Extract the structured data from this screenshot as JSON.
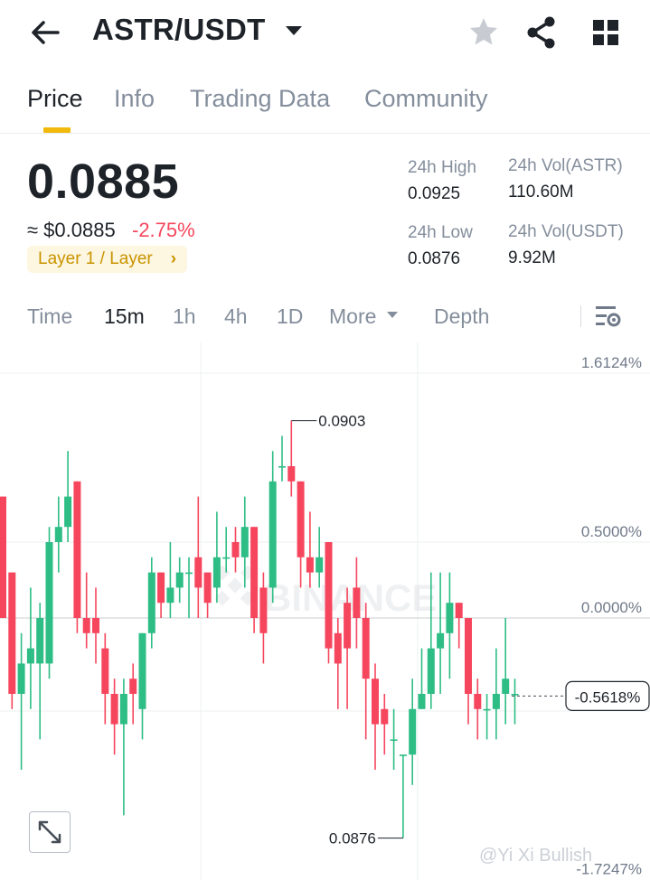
{
  "header": {
    "pair": "ASTR/USDT",
    "icons": [
      "back-arrow-icon",
      "caret-down-icon",
      "star-icon",
      "share-icon",
      "grid-icon"
    ]
  },
  "tabs": [
    {
      "label": "Price",
      "active": true
    },
    {
      "label": "Info",
      "active": false
    },
    {
      "label": "Trading Data",
      "active": false
    },
    {
      "label": "Community",
      "active": false
    }
  ],
  "price": {
    "last": "0.0885",
    "usd": "≈ $0.0885",
    "change": "-2.75%",
    "tag": "Layer 1 / Layer",
    "tag_chevron": "›"
  },
  "stats": {
    "high_label": "24h High",
    "high_value": "0.0925",
    "low_label": "24h Low",
    "low_value": "0.0876",
    "vol_base_label": "24h Vol(ASTR)",
    "vol_base_value": "110.60M",
    "vol_quote_label": "24h Vol(USDT)",
    "vol_quote_value": "9.92M"
  },
  "intervals": {
    "time": "Time",
    "m15": "15m",
    "h1": "1h",
    "h4": "4h",
    "d1": "1D",
    "more": "More",
    "depth": "Depth",
    "active": "15m"
  },
  "colors": {
    "up": "#2ebd85",
    "down": "#f6465d",
    "accent": "#f0b90b",
    "muted": "#848e9c"
  },
  "chart_data": {
    "type": "candlestick",
    "y_axis_labels": [
      "1.6124%",
      "0.5000%",
      "0.0000%",
      "-0.5618%",
      "-1.7247%"
    ],
    "y_axis_values": [
      1.6124,
      0.5,
      0.0,
      -0.5618,
      -1.7247
    ],
    "max_marker": "0.0903",
    "min_marker": "0.0876",
    "current_change_label": "-0.5618%",
    "watermark": "BINANCE",
    "candles": [
      {
        "o": 0.8,
        "c": 0.0,
        "h": 0.8,
        "l": 0.0
      },
      {
        "o": 0.3,
        "c": -0.5,
        "h": 0.3,
        "l": -0.6
      },
      {
        "o": -0.5,
        "c": -0.3,
        "h": -0.1,
        "l": -1.0
      },
      {
        "o": -0.3,
        "c": -0.2,
        "h": 0.2,
        "l": -0.6
      },
      {
        "o": -0.3,
        "c": 0.0,
        "h": 0.1,
        "l": -0.8
      },
      {
        "o": -0.3,
        "c": 0.5,
        "h": 0.6,
        "l": -0.4
      },
      {
        "o": 0.5,
        "c": 0.6,
        "h": 0.8,
        "l": 0.3
      },
      {
        "o": 0.6,
        "c": 0.8,
        "h": 1.1,
        "l": 0.5
      },
      {
        "o": 0.9,
        "c": 0.0,
        "h": 0.9,
        "l": -0.1
      },
      {
        "o": 0.0,
        "c": -0.1,
        "h": 0.3,
        "l": -0.2
      },
      {
        "o": 0.0,
        "c": -0.1,
        "h": 0.2,
        "l": -0.3
      },
      {
        "o": -0.2,
        "c": -0.5,
        "h": -0.1,
        "l": -0.7
      },
      {
        "o": -0.5,
        "c": -0.7,
        "h": -0.4,
        "l": -0.9
      },
      {
        "o": -0.7,
        "c": -0.5,
        "h": -0.4,
        "l": -1.3
      },
      {
        "o": -0.4,
        "c": -0.5,
        "h": -0.3,
        "l": -0.7
      },
      {
        "o": -0.6,
        "c": -0.1,
        "h": -0.1,
        "l": -0.8
      },
      {
        "o": -0.1,
        "c": 0.3,
        "h": 0.4,
        "l": -0.2
      },
      {
        "o": 0.3,
        "c": 0.1,
        "h": 0.3,
        "l": 0.0
      },
      {
        "o": 0.1,
        "c": 0.2,
        "h": 0.5,
        "l": 0.0
      },
      {
        "o": 0.2,
        "c": 0.3,
        "h": 0.4,
        "l": 0.1
      },
      {
        "o": 0.3,
        "c": 0.3,
        "h": 0.4,
        "l": 0.0
      },
      {
        "o": 0.4,
        "c": 0.2,
        "h": 0.8,
        "l": 0.0
      },
      {
        "o": 0.3,
        "c": 0.1,
        "h": 0.3,
        "l": 0.0
      },
      {
        "o": 0.2,
        "c": 0.4,
        "h": 0.7,
        "l": 0.1
      },
      {
        "o": 0.4,
        "c": 0.4,
        "h": 0.6,
        "l": 0.3
      },
      {
        "o": 0.5,
        "c": 0.4,
        "h": 0.6,
        "l": 0.3
      },
      {
        "o": 0.4,
        "c": 0.6,
        "h": 0.8,
        "l": 0.2
      },
      {
        "o": 0.6,
        "c": 0.0,
        "h": 0.6,
        "l": -0.1
      },
      {
        "o": 0.2,
        "c": -0.1,
        "h": 0.3,
        "l": -0.3
      },
      {
        "o": 0.2,
        "c": 0.9,
        "h": 1.1,
        "l": 0.1
      },
      {
        "o": 1.0,
        "c": 1.0,
        "h": 1.2,
        "l": 0.9
      },
      {
        "o": 1.0,
        "c": 0.9,
        "h": 1.3,
        "l": 0.8
      },
      {
        "o": 0.9,
        "c": 0.4,
        "h": 0.9,
        "l": 0.2
      },
      {
        "o": 0.4,
        "c": 0.3,
        "h": 0.7,
        "l": 0.2
      },
      {
        "o": 0.3,
        "c": 0.4,
        "h": 0.6,
        "l": 0.2
      },
      {
        "o": 0.5,
        "c": -0.2,
        "h": 0.5,
        "l": -0.3
      },
      {
        "o": -0.1,
        "c": -0.3,
        "h": 0.0,
        "l": -0.6
      },
      {
        "o": 0.1,
        "c": -0.2,
        "h": 0.2,
        "l": -0.6
      },
      {
        "o": 0.2,
        "c": 0.0,
        "h": 0.4,
        "l": -0.2
      },
      {
        "o": 0.0,
        "c": -0.4,
        "h": 0.1,
        "l": -0.8
      },
      {
        "o": -0.4,
        "c": -0.7,
        "h": -0.3,
        "l": -1.0
      },
      {
        "o": -0.6,
        "c": -0.7,
        "h": -0.5,
        "l": -0.9
      },
      {
        "o": -0.8,
        "c": -0.8,
        "h": -0.6,
        "l": -1.0
      },
      {
        "o": -0.9,
        "c": -0.9,
        "h": -0.9,
        "l": -1.45
      },
      {
        "o": -0.9,
        "c": -0.6,
        "h": -0.4,
        "l": -1.1
      },
      {
        "o": -0.6,
        "c": -0.5,
        "h": -0.2,
        "l": -0.6
      },
      {
        "o": -0.5,
        "c": -0.2,
        "h": 0.3,
        "l": -0.6
      },
      {
        "o": -0.2,
        "c": -0.1,
        "h": 0.3,
        "l": -0.5
      },
      {
        "o": -0.1,
        "c": 0.1,
        "h": 0.3,
        "l": -0.4
      },
      {
        "o": 0.1,
        "c": 0.0,
        "h": 0.1,
        "l": -0.2
      },
      {
        "o": 0.0,
        "c": -0.5,
        "h": 0.0,
        "l": -0.7
      },
      {
        "o": -0.5,
        "c": -0.6,
        "h": -0.4,
        "l": -0.8
      },
      {
        "o": -0.6,
        "c": -0.6,
        "h": -0.5,
        "l": -0.8
      },
      {
        "o": -0.6,
        "c": -0.5,
        "h": -0.2,
        "l": -0.8
      },
      {
        "o": -0.5,
        "c": -0.4,
        "h": 0.0,
        "l": -0.7
      },
      {
        "o": -0.5,
        "c": -0.5,
        "h": -0.4,
        "l": -0.7
      }
    ]
  },
  "footer": {
    "watermark": "@Yi Xi Bullish"
  }
}
